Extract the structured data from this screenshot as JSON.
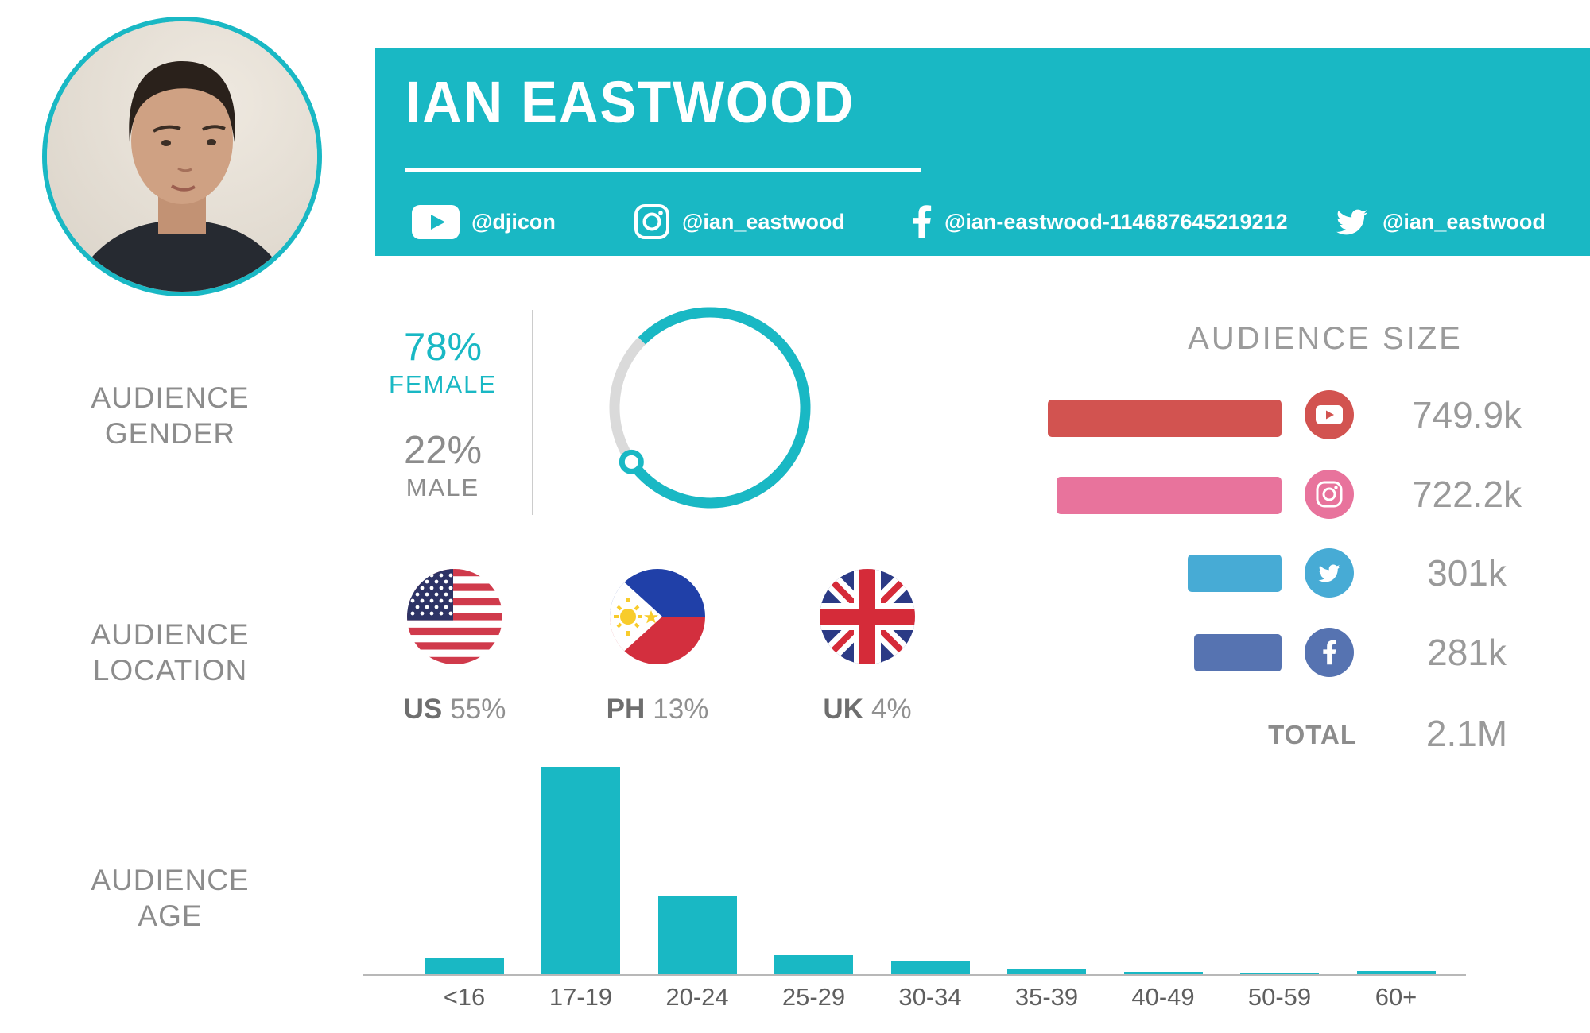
{
  "profile": {
    "name": "IAN EASTWOOD"
  },
  "socials": [
    {
      "platform": "youtube",
      "handle": "@djicon"
    },
    {
      "platform": "instagram",
      "handle": "@ian_eastwood"
    },
    {
      "platform": "facebook",
      "handle": "@ian-eastwood-114687645219212"
    },
    {
      "platform": "twitter",
      "handle": "@ian_eastwood"
    }
  ],
  "sections": {
    "gender_label": "AUDIENCE\nGENDER",
    "location_label": "AUDIENCE\nLOCATION",
    "age_label": "AUDIENCE\nAGE"
  },
  "gender": {
    "female_pct_label": "78%",
    "female_label": "FEMALE",
    "male_pct_label": "22%",
    "male_label": "MALE"
  },
  "locations": [
    {
      "code": "US",
      "pct_label": "55%"
    },
    {
      "code": "PH",
      "pct_label": "13%"
    },
    {
      "code": "UK",
      "pct_label": "4%"
    }
  ],
  "audience_size": {
    "title": "AUDIENCE SIZE",
    "rows": [
      {
        "platform": "youtube",
        "label": "749.9k"
      },
      {
        "platform": "instagram",
        "label": "722.2k"
      },
      {
        "platform": "twitter",
        "label": "301k"
      },
      {
        "platform": "facebook",
        "label": "281k"
      }
    ],
    "total_label": "TOTAL",
    "total_value": "2.1M"
  },
  "chart_data": [
    {
      "type": "pie",
      "style": "donut",
      "title": "AUDIENCE GENDER",
      "labels": [
        "FEMALE",
        "MALE"
      ],
      "values": [
        78,
        22
      ],
      "colors": [
        "#19b8c4",
        "#dadada"
      ],
      "start_angle_deg_from_top": 314.5
    },
    {
      "type": "bar",
      "title": "AUDIENCE LOCATION",
      "categories": [
        "US",
        "PH",
        "UK"
      ],
      "values": [
        55,
        13,
        4
      ],
      "unit": "percent"
    },
    {
      "type": "bar",
      "orientation": "horizontal",
      "title": "AUDIENCE SIZE",
      "categories": [
        "YouTube",
        "Instagram",
        "Twitter",
        "Facebook"
      ],
      "series": [
        {
          "name": "followers_thousands",
          "values": [
            749.9,
            722.2,
            301,
            281
          ]
        }
      ],
      "value_labels": [
        "749.9k",
        "722.2k",
        "301k",
        "281k"
      ],
      "total": "2.1M",
      "xlim": [
        0,
        750
      ],
      "colors": [
        "#d25350",
        "#e8739c",
        "#47abd5",
        "#5673b1"
      ],
      "legend": "off",
      "grid": "off"
    },
    {
      "type": "bar",
      "title": "AUDIENCE AGE",
      "categories": [
        "<16",
        "17-19",
        "20-24",
        "25-29",
        "30-34",
        "35-39",
        "40-49",
        "50-59",
        "60+"
      ],
      "values": [
        4.8,
        60,
        22.8,
        5.5,
        3.7,
        1.6,
        0.7,
        0.2,
        0.9
      ],
      "unit": "percent_estimated_from_bar_heights",
      "ylim": [
        0,
        65
      ],
      "bar_color": "#19b8c4",
      "grid": "off"
    }
  ],
  "colors": {
    "accent_teal": "#19b8c4",
    "youtube_red": "#d25350",
    "instagram_pink": "#e8739c",
    "twitter_blue": "#47abd5",
    "facebook_blue": "#5673b1",
    "label_gray": "#8c8c8c",
    "value_gray": "#9a9a9a",
    "donut_track_gray": "#dadada"
  }
}
